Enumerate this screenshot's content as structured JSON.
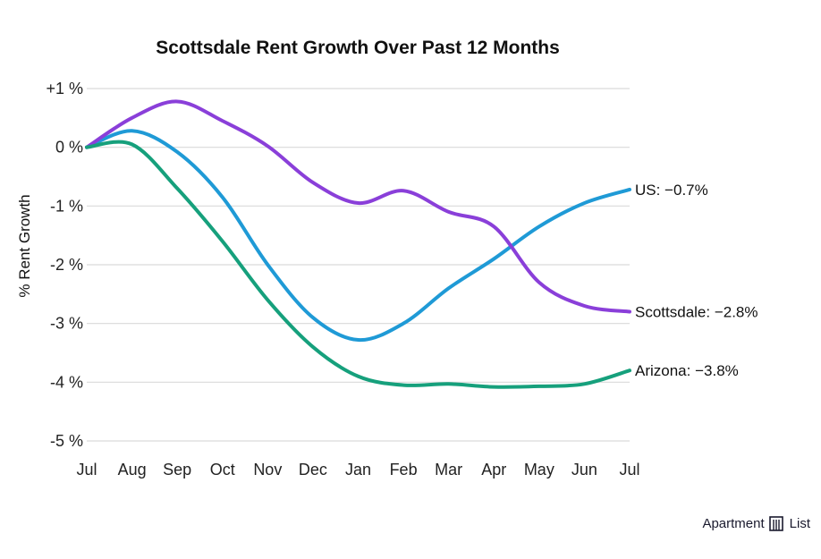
{
  "chart_data": {
    "type": "line",
    "title": "Scottsdale Rent Growth Over Past 12 Months",
    "xlabel": "",
    "ylabel": "% Rent Growth",
    "categories": [
      "Jul",
      "Aug",
      "Sep",
      "Oct",
      "Nov",
      "Dec",
      "Jan",
      "Feb",
      "Mar",
      "Apr",
      "May",
      "Jun",
      "Jul"
    ],
    "ylim": [
      -5,
      1
    ],
    "yticks": [
      {
        "value": 1,
        "label": "+1 %"
      },
      {
        "value": 0,
        "label": "0 %"
      },
      {
        "value": -1,
        "label": "-1 %"
      },
      {
        "value": -2,
        "label": "-2 %"
      },
      {
        "value": -3,
        "label": "-3 %"
      },
      {
        "value": -4,
        "label": "-4 %"
      },
      {
        "value": -5,
        "label": "-5 %"
      }
    ],
    "grid": true,
    "series": [
      {
        "name": "US",
        "color": "#1f9ad6",
        "end_label": "US: −0.7%",
        "values": [
          0,
          0.28,
          -0.08,
          -0.85,
          -2.0,
          -2.9,
          -3.28,
          -3.0,
          -2.4,
          -1.9,
          -1.35,
          -0.95,
          -0.72
        ]
      },
      {
        "name": "Scottsdale",
        "color": "#8a3fd9",
        "end_label": "Scottsdale: −2.8%",
        "values": [
          0,
          0.5,
          0.78,
          0.45,
          0.02,
          -0.6,
          -0.95,
          -0.74,
          -1.1,
          -1.35,
          -2.3,
          -2.7,
          -2.8
        ]
      },
      {
        "name": "Arizona",
        "color": "#16a07c",
        "end_label": "Arizona: −3.8%",
        "values": [
          0,
          0.05,
          -0.7,
          -1.6,
          -2.6,
          -3.4,
          -3.9,
          -4.05,
          -4.03,
          -4.08,
          -4.07,
          -4.03,
          -3.8
        ]
      }
    ]
  },
  "brand": {
    "name": "Apartment",
    "suffix": "List"
  }
}
